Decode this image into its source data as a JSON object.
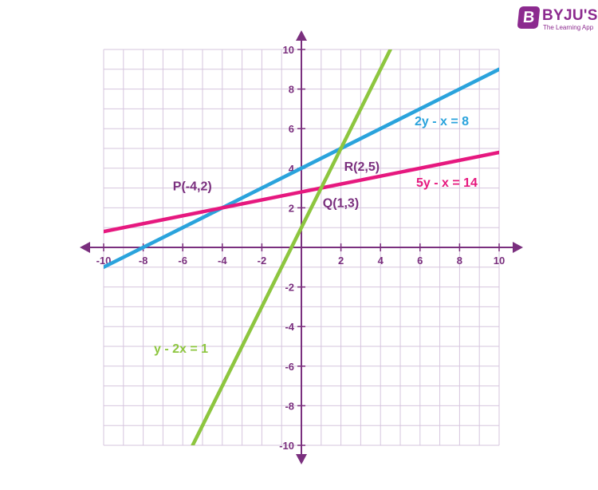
{
  "logo": {
    "mark": "B",
    "name": "BYJU'S",
    "tagline": "The Learning App",
    "color": "#8c2a8f"
  },
  "chart_data": {
    "type": "line",
    "title": "",
    "xlabel": "",
    "ylabel": "",
    "xlim": [
      -10,
      10
    ],
    "ylim": [
      -10,
      10
    ],
    "grid": true,
    "x_ticks": [
      -10,
      -8,
      -6,
      -4,
      -2,
      2,
      4,
      6,
      8,
      10
    ],
    "y_ticks": [
      -10,
      -8,
      -6,
      -4,
      -2,
      2,
      4,
      6,
      8,
      10
    ],
    "x_tick_labels": [
      "-10",
      "-8",
      "-6",
      "-4",
      "-2",
      "2",
      "4",
      "6",
      "8",
      "10"
    ],
    "y_tick_labels": [
      "-10",
      "-8",
      "-6",
      "-4",
      "-2",
      "2",
      "4",
      "6",
      "8",
      "10"
    ],
    "series": [
      {
        "name": "2y - x = 8",
        "color": "#2aa3dc",
        "x": [
          -10,
          10
        ],
        "y": [
          -1,
          9
        ]
      },
      {
        "name": "5y - x = 14",
        "color": "#e6187f",
        "x": [
          -10,
          10
        ],
        "y": [
          0.8,
          4.8
        ]
      },
      {
        "name": "y - 2x = 1",
        "color": "#8dc63f",
        "x": [
          -5.5,
          4.5
        ],
        "y": [
          -10,
          10
        ]
      }
    ],
    "points": [
      {
        "label": "P(-4,2)",
        "x": -4,
        "y": 2
      },
      {
        "label": "Q(1,3)",
        "x": 1,
        "y": 3
      },
      {
        "label": "R(2,5)",
        "x": 2,
        "y": 5
      }
    ],
    "colors": {
      "grid": "#d6c5de",
      "axis": "#7a2f7e",
      "labels": "#7a2f7e"
    }
  }
}
